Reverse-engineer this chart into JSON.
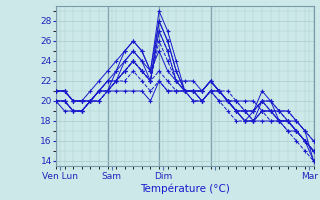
{
  "bg_color": "#cce8e8",
  "line_color": "#1a1acc",
  "grid_color": "#aacccc",
  "ylabel": "Température (°C)",
  "xlim": [
    0,
    120
  ],
  "ylim": [
    13.5,
    29.5
  ],
  "yticks": [
    14,
    16,
    18,
    20,
    22,
    24,
    26,
    28
  ],
  "day_lines_x": [
    0,
    24,
    48,
    72,
    120
  ],
  "xtick_positions": [
    2,
    26,
    50,
    74,
    118
  ],
  "xtick_labels": [
    "Ven Lun",
    "Sam",
    "Dim",
    "",
    "Mar"
  ],
  "lines": [
    {
      "x": [
        0,
        4,
        8,
        12,
        16,
        20,
        24,
        28,
        32,
        36,
        40,
        44,
        48,
        52,
        56,
        60,
        64,
        68,
        72,
        76,
        80,
        84,
        88,
        92,
        96,
        100,
        104,
        108,
        112,
        116,
        120
      ],
      "y": [
        20,
        20,
        19,
        19,
        20,
        21,
        21,
        23,
        25,
        26,
        25,
        23,
        29,
        27,
        24,
        21,
        21,
        21,
        22,
        21,
        20,
        19,
        18,
        18,
        20,
        20,
        19,
        19,
        18,
        17,
        14
      ],
      "dash": false
    },
    {
      "x": [
        0,
        4,
        8,
        12,
        16,
        20,
        24,
        28,
        32,
        36,
        40,
        44,
        48,
        52,
        56,
        60,
        64,
        68,
        72,
        76,
        80,
        84,
        88,
        92,
        96,
        100,
        104,
        108,
        112,
        116,
        120
      ],
      "y": [
        20,
        20,
        19,
        19,
        20,
        21,
        21,
        22,
        24,
        25,
        24,
        22,
        28,
        26,
        23,
        21,
        20,
        20,
        21,
        20,
        20,
        19,
        18,
        19,
        21,
        20,
        18,
        18,
        17,
        16,
        15
      ],
      "dash": false
    },
    {
      "x": [
        0,
        4,
        8,
        12,
        16,
        20,
        24,
        28,
        32,
        36,
        40,
        44,
        48,
        52,
        56,
        60,
        64,
        68,
        72,
        76,
        80,
        84,
        88,
        92,
        96,
        100,
        104,
        108,
        112,
        116,
        120
      ],
      "y": [
        21,
        21,
        20,
        20,
        20,
        21,
        22,
        22,
        23,
        24,
        23,
        22,
        27,
        25,
        22,
        21,
        21,
        20,
        21,
        21,
        20,
        19,
        19,
        19,
        20,
        19,
        18,
        18,
        17,
        16,
        15
      ],
      "dash": false
    },
    {
      "x": [
        0,
        4,
        8,
        12,
        16,
        20,
        24,
        28,
        32,
        36,
        40,
        44,
        48,
        52,
        56,
        60,
        64,
        68,
        72,
        76,
        80,
        84,
        88,
        92,
        96,
        100,
        104,
        108,
        112,
        116,
        120
      ],
      "y": [
        21,
        21,
        20,
        20,
        20,
        21,
        22,
        23,
        24,
        25,
        24,
        23,
        28,
        26,
        23,
        21,
        21,
        21,
        22,
        21,
        20,
        19,
        18,
        18,
        19,
        19,
        18,
        18,
        17,
        16,
        14
      ],
      "dash": false
    },
    {
      "x": [
        0,
        4,
        8,
        12,
        16,
        20,
        24,
        28,
        32,
        36,
        40,
        44,
        48,
        52,
        56,
        60,
        64,
        68,
        72,
        76,
        80,
        84,
        88,
        92,
        96,
        100,
        104,
        108,
        112,
        116,
        120
      ],
      "y": [
        20,
        19,
        19,
        19,
        20,
        20,
        21,
        21,
        21,
        21,
        21,
        20,
        22,
        21,
        21,
        21,
        21,
        20,
        21,
        21,
        20,
        20,
        20,
        20,
        19,
        19,
        19,
        18,
        18,
        17,
        16
      ],
      "dash": false
    },
    {
      "x": [
        0,
        4,
        8,
        12,
        16,
        20,
        24,
        28,
        32,
        36,
        40,
        44,
        48,
        52,
        56,
        60,
        64,
        68,
        72,
        76,
        80,
        84,
        88,
        92,
        96,
        100,
        104,
        108,
        112,
        116,
        120
      ],
      "y": [
        20,
        20,
        19,
        19,
        20,
        20,
        21,
        22,
        23,
        24,
        23,
        22,
        27,
        25,
        22,
        21,
        20,
        20,
        21,
        21,
        21,
        20,
        19,
        19,
        20,
        19,
        18,
        18,
        17,
        16,
        15
      ],
      "dash": true
    },
    {
      "x": [
        0,
        4,
        8,
        12,
        16,
        20,
        24,
        28,
        32,
        36,
        40,
        44,
        48,
        52,
        56,
        60,
        64,
        68,
        72,
        76,
        80,
        84,
        88,
        92,
        96,
        100,
        104,
        108,
        112,
        116,
        120
      ],
      "y": [
        21,
        21,
        20,
        20,
        20,
        21,
        22,
        22,
        23,
        24,
        23,
        22,
        26,
        24,
        22,
        21,
        21,
        21,
        22,
        21,
        20,
        19,
        19,
        18,
        19,
        19,
        19,
        18,
        17,
        16,
        15
      ],
      "dash": true
    },
    {
      "x": [
        0,
        4,
        8,
        12,
        16,
        20,
        24,
        28,
        32,
        36,
        40,
        44,
        48,
        52,
        56,
        60,
        64,
        68,
        72,
        76,
        80,
        84,
        88,
        92,
        96,
        100,
        104,
        108,
        112,
        116,
        120
      ],
      "y": [
        21,
        21,
        20,
        20,
        21,
        22,
        23,
        24,
        25,
        26,
        25,
        23,
        25,
        23,
        22,
        22,
        22,
        21,
        22,
        21,
        20,
        19,
        19,
        18,
        18,
        18,
        18,
        17,
        17,
        16,
        15
      ],
      "dash": false
    },
    {
      "x": [
        0,
        4,
        8,
        12,
        16,
        20,
        24,
        28,
        32,
        36,
        40,
        44,
        48,
        52,
        56,
        60,
        64,
        68,
        72,
        76,
        80,
        84,
        88,
        92,
        96,
        100,
        104,
        108,
        112,
        116,
        120
      ],
      "y": [
        20,
        20,
        19,
        19,
        20,
        20,
        21,
        22,
        23,
        24,
        23,
        22,
        23,
        22,
        21,
        21,
        21,
        21,
        22,
        21,
        20,
        20,
        19,
        19,
        20,
        20,
        19,
        19,
        18,
        17,
        16
      ],
      "dash": true
    },
    {
      "x": [
        0,
        4,
        8,
        12,
        16,
        20,
        24,
        28,
        32,
        36,
        40,
        44,
        48,
        52,
        56,
        60,
        64,
        68,
        72,
        76,
        80,
        84,
        88,
        92,
        96,
        100,
        104,
        108,
        112,
        116,
        120
      ],
      "y": [
        21,
        21,
        20,
        20,
        20,
        21,
        21,
        22,
        22,
        23,
        22,
        21,
        22,
        21,
        21,
        21,
        21,
        20,
        21,
        20,
        19,
        18,
        18,
        18,
        19,
        18,
        18,
        17,
        16,
        15,
        14
      ],
      "dash": true
    }
  ]
}
